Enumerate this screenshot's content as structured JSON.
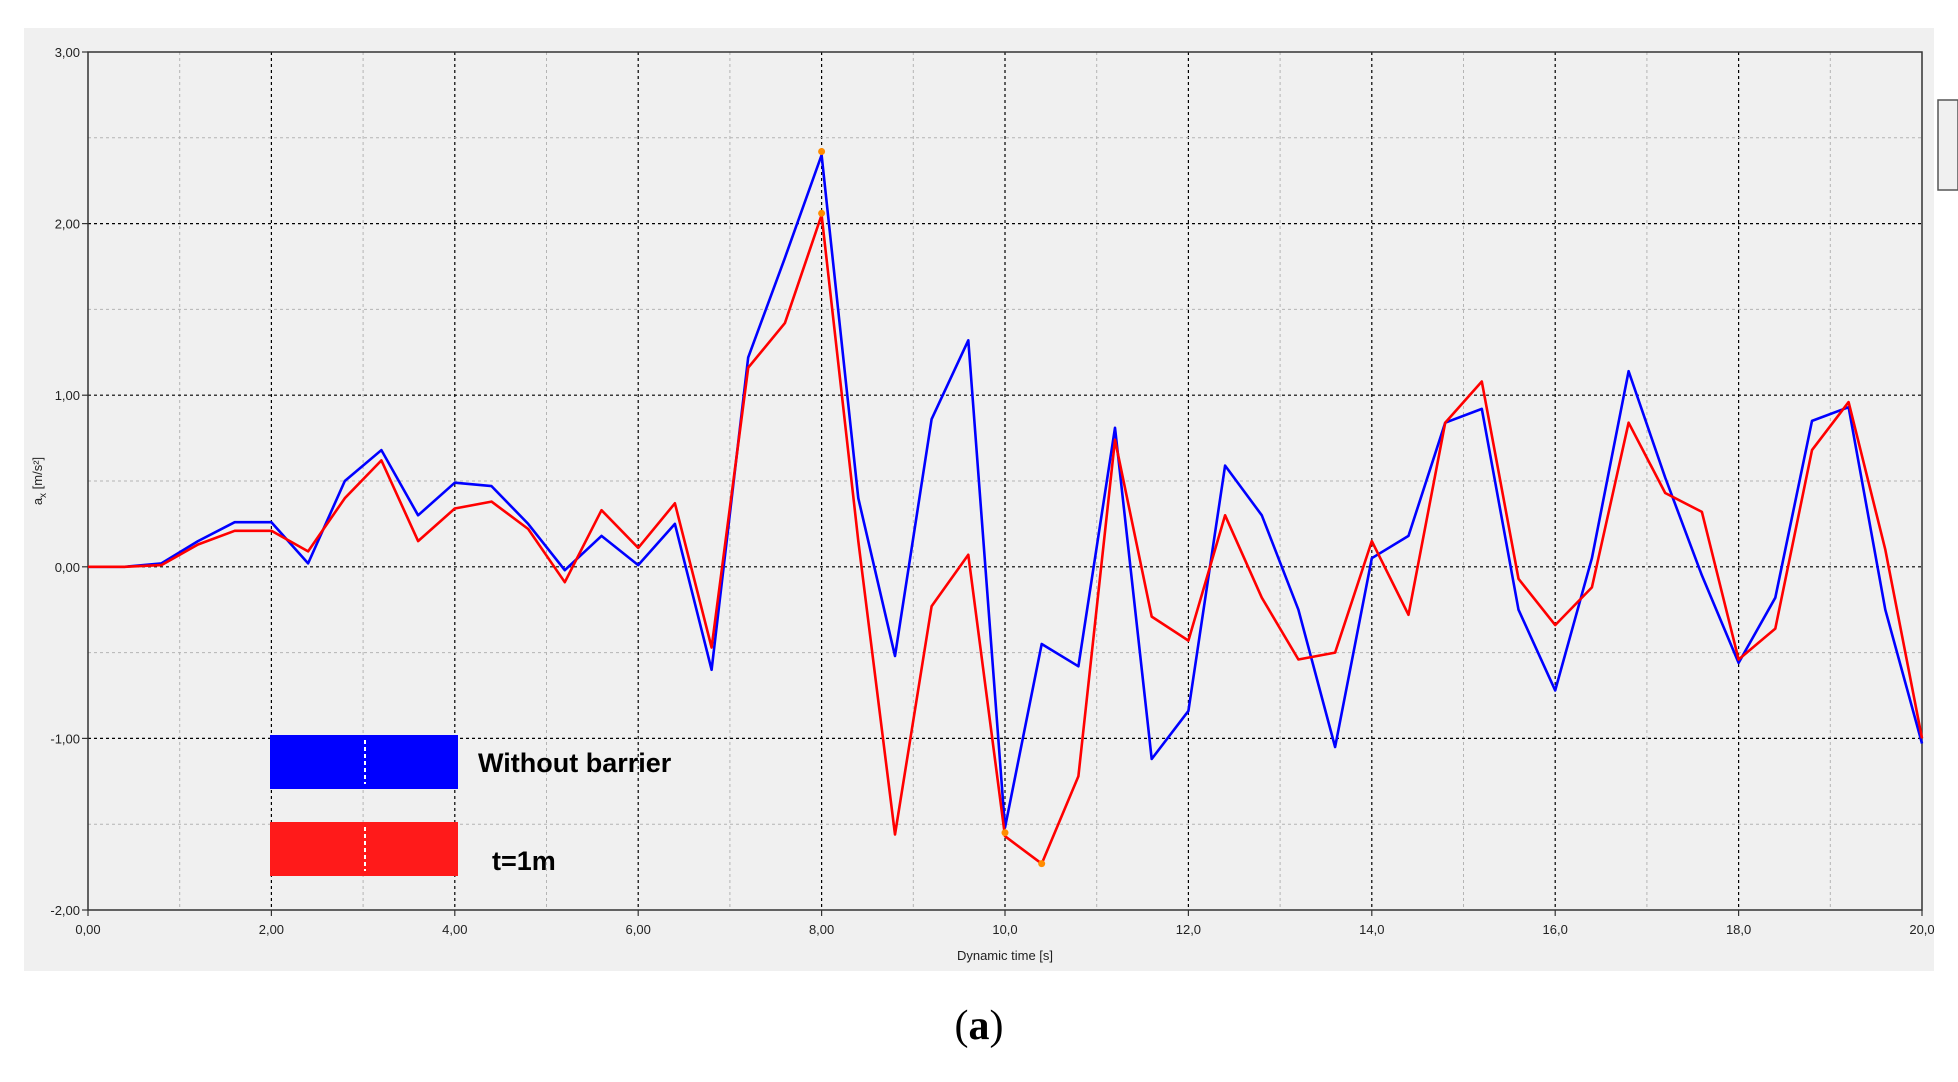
{
  "chart_data": {
    "type": "line",
    "title": "",
    "xlabel": "Dynamic time [s]",
    "ylabel": "a_x [m/s²]",
    "ylabel_main": "a",
    "ylabel_sub": "x",
    "ylabel_unit": " [m/s²]",
    "xlim": [
      0,
      20
    ],
    "ylim": [
      -2,
      3
    ],
    "x_ticks": [
      0,
      2,
      4,
      6,
      8,
      10,
      12,
      14,
      16,
      18,
      20
    ],
    "x_tick_labels": [
      "0,00",
      "2,00",
      "4,00",
      "6,00",
      "8,00",
      "10,0",
      "12,0",
      "14,0",
      "16,0",
      "18,0",
      "20,0"
    ],
    "y_ticks": [
      -2,
      -1,
      0,
      1,
      2,
      3
    ],
    "y_tick_labels": [
      "-2,00",
      "-1,00",
      "0,00",
      "1,00",
      "2,00",
      "3,00"
    ],
    "grid": true,
    "legend_placement": "bottom-left",
    "series": [
      {
        "name": "Without barrier",
        "color": "#0000ff",
        "points": [
          [
            0,
            0
          ],
          [
            0.4,
            0
          ],
          [
            0.8,
            0.02
          ],
          [
            1.2,
            0.15
          ],
          [
            1.6,
            0.26
          ],
          [
            2.0,
            0.26
          ],
          [
            2.4,
            0.02
          ],
          [
            2.8,
            0.5
          ],
          [
            3.2,
            0.68
          ],
          [
            3.6,
            0.3
          ],
          [
            4.0,
            0.49
          ],
          [
            4.4,
            0.47
          ],
          [
            4.8,
            0.25
          ],
          [
            5.2,
            -0.02
          ],
          [
            5.6,
            0.18
          ],
          [
            6.0,
            0.01
          ],
          [
            6.4,
            0.25
          ],
          [
            6.8,
            -0.6
          ],
          [
            7.2,
            1.22
          ],
          [
            7.6,
            1.8
          ],
          [
            8.0,
            2.4
          ],
          [
            8.4,
            0.4
          ],
          [
            8.8,
            -0.52
          ],
          [
            9.2,
            0.86
          ],
          [
            9.6,
            1.32
          ],
          [
            10.0,
            -1.52
          ],
          [
            10.4,
            -0.45
          ],
          [
            10.8,
            -0.58
          ],
          [
            11.2,
            0.81
          ],
          [
            11.6,
            -1.12
          ],
          [
            12.0,
            -0.84
          ],
          [
            12.4,
            0.59
          ],
          [
            12.8,
            0.3
          ],
          [
            13.2,
            -0.25
          ],
          [
            13.6,
            -1.05
          ],
          [
            14.0,
            0.05
          ],
          [
            14.4,
            0.18
          ],
          [
            14.8,
            0.84
          ],
          [
            15.2,
            0.92
          ],
          [
            15.6,
            -0.25
          ],
          [
            16.0,
            -0.72
          ],
          [
            16.4,
            0.05
          ],
          [
            16.8,
            1.14
          ],
          [
            17.2,
            0.52
          ],
          [
            17.6,
            -0.05
          ],
          [
            18.0,
            -0.56
          ],
          [
            18.4,
            -0.18
          ],
          [
            18.8,
            0.85
          ],
          [
            19.2,
            0.93
          ],
          [
            19.6,
            -0.25
          ],
          [
            20.0,
            -1.03
          ]
        ]
      },
      {
        "name": "t=1m",
        "color": "#ff0000",
        "points": [
          [
            0,
            0
          ],
          [
            0.4,
            0
          ],
          [
            0.8,
            0.01
          ],
          [
            1.2,
            0.13
          ],
          [
            1.6,
            0.21
          ],
          [
            2.0,
            0.21
          ],
          [
            2.4,
            0.09
          ],
          [
            2.8,
            0.4
          ],
          [
            3.2,
            0.62
          ],
          [
            3.6,
            0.15
          ],
          [
            4.0,
            0.34
          ],
          [
            4.4,
            0.38
          ],
          [
            4.8,
            0.22
          ],
          [
            5.2,
            -0.09
          ],
          [
            5.6,
            0.33
          ],
          [
            6.0,
            0.11
          ],
          [
            6.4,
            0.37
          ],
          [
            6.8,
            -0.47
          ],
          [
            7.2,
            1.16
          ],
          [
            7.6,
            1.42
          ],
          [
            8.0,
            2.05
          ],
          [
            8.4,
            0.15
          ],
          [
            8.8,
            -1.56
          ],
          [
            9.2,
            -0.23
          ],
          [
            9.6,
            0.07
          ],
          [
            10.0,
            -1.57
          ],
          [
            10.4,
            -1.73
          ],
          [
            10.8,
            -1.22
          ],
          [
            11.2,
            0.74
          ],
          [
            11.6,
            -0.29
          ],
          [
            12.0,
            -0.43
          ],
          [
            12.4,
            0.3
          ],
          [
            12.8,
            -0.18
          ],
          [
            13.2,
            -0.54
          ],
          [
            13.6,
            -0.5
          ],
          [
            14.0,
            0.15
          ],
          [
            14.4,
            -0.28
          ],
          [
            14.8,
            0.84
          ],
          [
            15.2,
            1.08
          ],
          [
            15.6,
            -0.07
          ],
          [
            16.0,
            -0.34
          ],
          [
            16.4,
            -0.12
          ],
          [
            16.8,
            0.84
          ],
          [
            17.2,
            0.43
          ],
          [
            17.6,
            0.32
          ],
          [
            18.0,
            -0.54
          ],
          [
            18.4,
            -0.36
          ],
          [
            18.8,
            0.68
          ],
          [
            19.2,
            0.96
          ],
          [
            19.6,
            0.1
          ],
          [
            20.0,
            -1.0
          ]
        ]
      }
    ],
    "highlight_points": [
      [
        8.0,
        2.42
      ],
      [
        8.0,
        2.06
      ],
      [
        10.0,
        -1.55
      ],
      [
        10.4,
        -1.73
      ]
    ],
    "highlight_color": "#ff8c00"
  },
  "caption": {
    "open": "(",
    "letter": "a",
    "close": ")"
  },
  "colors": {
    "plot_background": "#f0f0f0",
    "grid": "#000000"
  }
}
